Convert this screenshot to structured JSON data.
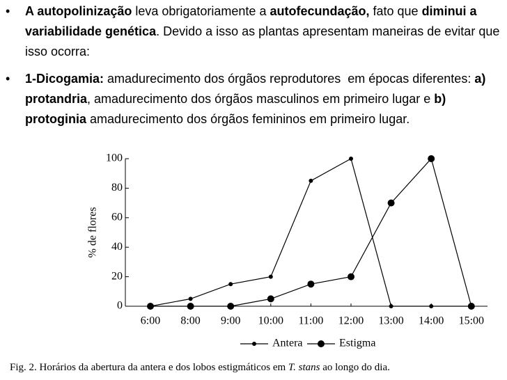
{
  "bullets": [
    {
      "segments": [
        {
          "text": "A autopolinização",
          "bold": true
        },
        {
          "text": " leva obrigatoriamente a ",
          "bold": false
        },
        {
          "text": "autofecundação,",
          "bold": true
        },
        {
          "text": " fato que ",
          "bold": false
        },
        {
          "text": "diminui a variabilidade genética",
          "bold": true
        },
        {
          "text": ". Devido a isso as plantas apresentam maneiras de evitar que isso ocorra:",
          "bold": false
        }
      ]
    },
    {
      "segments": [
        {
          "text": "1-Dicogamia:",
          "bold": true
        },
        {
          "text": " amadurecimento dos órgãos reprodutores  em épocas diferentes: ",
          "bold": false
        },
        {
          "text": "a) protandria",
          "bold": true
        },
        {
          "text": ", amadurecimento dos órgãos masculinos em primeiro lugar e ",
          "bold": false
        },
        {
          "text": "b) protoginia",
          "bold": true
        },
        {
          "text": " amadurecimento dos órgãos femininos em primeiro lugar.",
          "bold": false
        }
      ]
    }
  ],
  "chart_data": {
    "type": "line",
    "y_label": "% de flores",
    "categories": [
      "6:00",
      "8:00",
      "9:00",
      "10:00",
      "11:00",
      "12:00",
      "13:00",
      "14:00",
      "15:00"
    ],
    "series": [
      {
        "name": "Antera",
        "color": "#000000",
        "values": [
          0,
          5,
          15,
          20,
          85,
          100,
          0,
          0,
          0
        ]
      },
      {
        "name": "Estigma",
        "color": "#000000",
        "values": [
          0,
          0,
          0,
          5,
          15,
          20,
          70,
          100,
          0
        ]
      }
    ],
    "ylim": [
      0,
      100
    ],
    "yticks": [
      0,
      20,
      40,
      60,
      80,
      100
    ],
    "grid": false,
    "legend": "bottom"
  },
  "caption": [
    {
      "text": "Fig. 2. Horários da abertura da antera e dos lobos estigmáticos em ",
      "italic": false
    },
    {
      "text": "T. stans",
      "italic": true
    },
    {
      "text": " ao longo do dia.",
      "italic": false
    }
  ]
}
